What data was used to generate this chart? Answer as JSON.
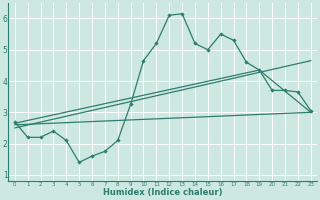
{
  "xlabel": "Humidex (Indice chaleur)",
  "xlim": [
    -0.5,
    23.5
  ],
  "ylim": [
    0.8,
    6.5
  ],
  "yticks": [
    1,
    2,
    3,
    4,
    5,
    6
  ],
  "xticks": [
    0,
    1,
    2,
    3,
    4,
    5,
    6,
    7,
    8,
    9,
    10,
    11,
    12,
    13,
    14,
    15,
    16,
    17,
    18,
    19,
    20,
    21,
    22,
    23
  ],
  "bg_color": "#cce8e0",
  "grid_color": "#ffffff",
  "line_color": "#2e7d6e",
  "series1_x": [
    0,
    1,
    2,
    3,
    4,
    5,
    6,
    7,
    8,
    9,
    10,
    11,
    12,
    13,
    14,
    15,
    16,
    17,
    18,
    19,
    20,
    21,
    22,
    23
  ],
  "series1_y": [
    2.7,
    2.2,
    2.2,
    2.4,
    2.1,
    1.4,
    1.6,
    1.75,
    2.1,
    3.25,
    4.65,
    5.2,
    6.1,
    6.15,
    5.2,
    5.0,
    5.5,
    5.3,
    4.6,
    4.35,
    3.7,
    3.7,
    3.65,
    3.05
  ],
  "line2_x": [
    0,
    23
  ],
  "line2_y": [
    2.6,
    3.0
  ],
  "line3_x": [
    0,
    23
  ],
  "line3_y": [
    2.5,
    4.65
  ],
  "line4_x": [
    0,
    19,
    23
  ],
  "line4_y": [
    2.65,
    4.35,
    3.0
  ]
}
